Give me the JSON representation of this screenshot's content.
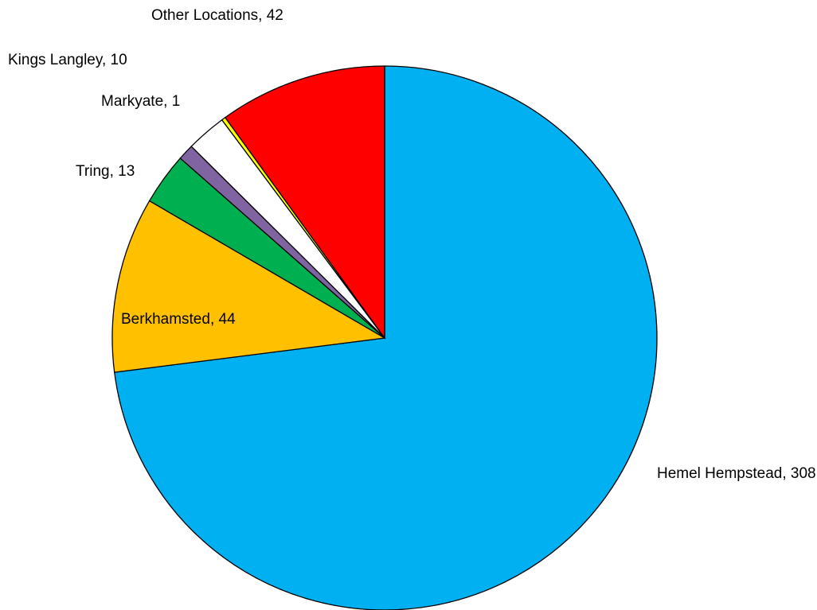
{
  "chart_data": {
    "type": "pie",
    "categories": [
      "Hemel Hempstead",
      "Berkhamsted",
      "Tring",
      null,
      "Kings Langley",
      "Markyate",
      "Other Locations"
    ],
    "values": [
      308,
      44,
      13,
      4,
      10,
      1,
      42
    ],
    "value_labels": [
      "Hemel Hempstead, 308",
      "Berkhamsted, 44",
      "Tring, 13",
      null,
      "Kings Langley, 10",
      "Markyate, 1",
      "Other Locations, 42"
    ],
    "colors": [
      "#00b0f0",
      "#ffc000",
      "#00b050",
      "#8064a2",
      "#ffffff",
      "#ffff00",
      "#ff0000"
    ]
  }
}
